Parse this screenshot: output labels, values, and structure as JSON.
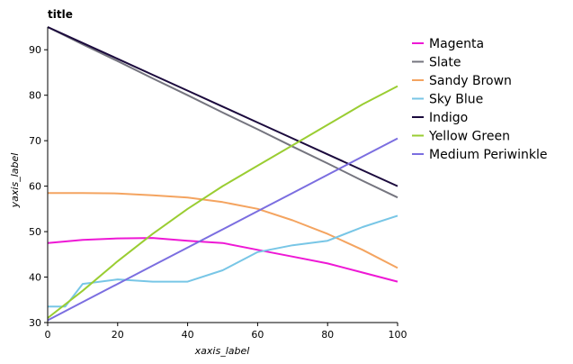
{
  "chart_data": {
    "type": "line",
    "title": "title",
    "xlabel": "xaxis_label",
    "ylabel": "yaxis_label",
    "xlim": [
      0,
      100
    ],
    "ylim": [
      30,
      95
    ],
    "x_ticks": [
      "0",
      "20",
      "40",
      "60",
      "80",
      "100"
    ],
    "y_ticks": [
      "30",
      "40",
      "50",
      "60",
      "70",
      "80",
      "90"
    ],
    "grid": false,
    "legend_position": "right",
    "series": [
      {
        "name": "Magenta",
        "color": "#ee18d5",
        "points": [
          [
            0,
            47.5
          ],
          [
            10,
            48.2
          ],
          [
            20,
            48.5
          ],
          [
            30,
            48.6
          ],
          [
            40,
            48.0
          ],
          [
            50,
            47.5
          ],
          [
            60,
            46.0
          ],
          [
            70,
            44.5
          ],
          [
            80,
            43.0
          ],
          [
            90,
            41.0
          ],
          [
            100,
            39.0
          ]
        ]
      },
      {
        "name": "Slate",
        "color": "#75757f",
        "points": [
          [
            0,
            95
          ],
          [
            10,
            91.2
          ],
          [
            20,
            87.5
          ],
          [
            30,
            83.7
          ],
          [
            40,
            80.0
          ],
          [
            50,
            76.2
          ],
          [
            60,
            72.5
          ],
          [
            70,
            68.7
          ],
          [
            80,
            65.0
          ],
          [
            90,
            61.2
          ],
          [
            100,
            57.5
          ]
        ]
      },
      {
        "name": "Sandy Brown",
        "color": "#f4a460",
        "points": [
          [
            0,
            58.5
          ],
          [
            10,
            58.5
          ],
          [
            20,
            58.4
          ],
          [
            30,
            58.0
          ],
          [
            40,
            57.5
          ],
          [
            50,
            56.5
          ],
          [
            60,
            55.0
          ],
          [
            70,
            52.5
          ],
          [
            80,
            49.5
          ],
          [
            90,
            46.0
          ],
          [
            100,
            42.0
          ]
        ]
      },
      {
        "name": "Sky Blue",
        "color": "#78c6e6",
        "points": [
          [
            0,
            33.5
          ],
          [
            5,
            33.5
          ],
          [
            10,
            38.5
          ],
          [
            20,
            39.5
          ],
          [
            30,
            39.0
          ],
          [
            40,
            39.0
          ],
          [
            50,
            41.5
          ],
          [
            60,
            45.5
          ],
          [
            70,
            47.0
          ],
          [
            80,
            48.0
          ],
          [
            90,
            51.0
          ],
          [
            100,
            53.5
          ]
        ]
      },
      {
        "name": "Indigo",
        "color": "#1b0a3d",
        "points": [
          [
            0,
            95
          ],
          [
            10,
            91.5
          ],
          [
            20,
            88.0
          ],
          [
            30,
            84.5
          ],
          [
            40,
            81.0
          ],
          [
            50,
            77.5
          ],
          [
            60,
            74.0
          ],
          [
            70,
            70.5
          ],
          [
            80,
            67.0
          ],
          [
            90,
            63.5
          ],
          [
            100,
            60.0
          ]
        ]
      },
      {
        "name": "Yellow Green",
        "color": "#9acd32",
        "points": [
          [
            0,
            31
          ],
          [
            10,
            37.0
          ],
          [
            20,
            43.5
          ],
          [
            30,
            49.5
          ],
          [
            40,
            55.0
          ],
          [
            50,
            60.0
          ],
          [
            60,
            64.5
          ],
          [
            70,
            69.0
          ],
          [
            80,
            73.5
          ],
          [
            90,
            78.0
          ],
          [
            100,
            82.0
          ]
        ]
      },
      {
        "name": "Medium Periwinkle",
        "color": "#7b6ee0",
        "points": [
          [
            0,
            30.5
          ],
          [
            10,
            34.5
          ],
          [
            20,
            38.5
          ],
          [
            30,
            42.5
          ],
          [
            40,
            46.5
          ],
          [
            50,
            50.5
          ],
          [
            60,
            54.5
          ],
          [
            70,
            58.5
          ],
          [
            80,
            62.5
          ],
          [
            90,
            66.5
          ],
          [
            100,
            70.5
          ]
        ]
      }
    ]
  }
}
